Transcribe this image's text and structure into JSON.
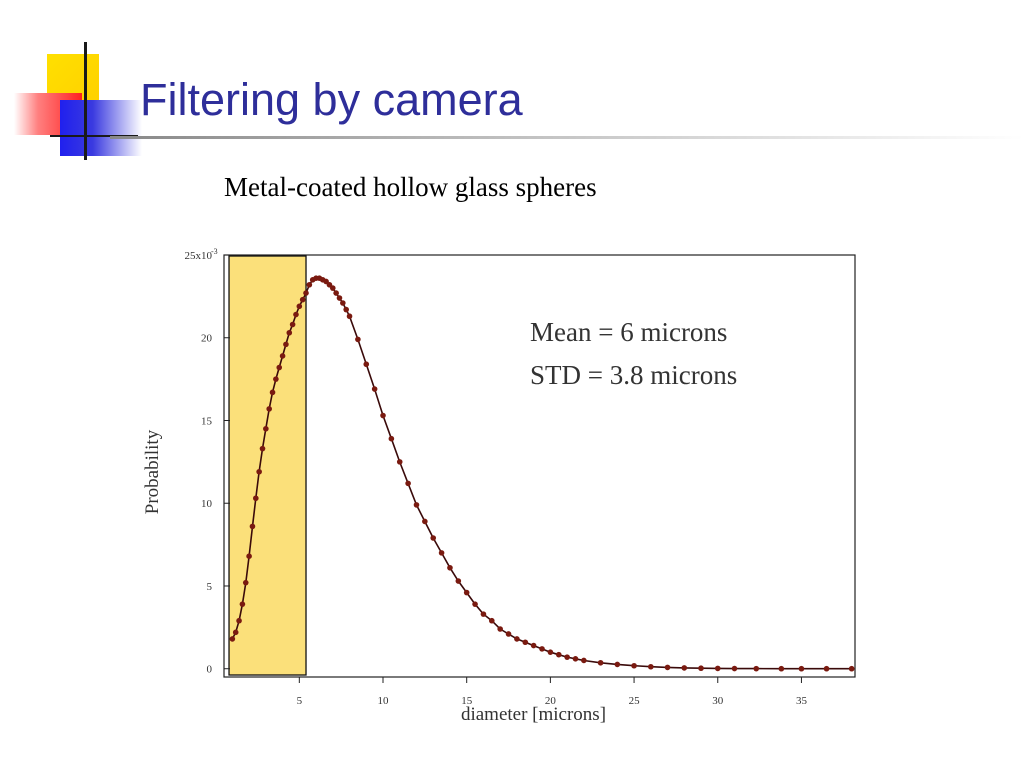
{
  "slide": {
    "title": "Filtering by camera",
    "subtitle": "Metal-coated hollow glass spheres"
  },
  "colors": {
    "title": "#2e2e9a",
    "highlight": "#fbe07a",
    "curve": "#3a0a0a",
    "marker": "#7a1a10"
  },
  "chart_data": {
    "type": "line",
    "title": "",
    "xlabel": "diameter [microns]",
    "ylabel": "Probability",
    "x_ticks": [
      5,
      10,
      15,
      20,
      25,
      30,
      35
    ],
    "y_ticks": [
      0,
      5,
      10,
      15,
      20,
      25
    ],
    "y_tick_labels": [
      "0",
      "5",
      "10",
      "15",
      "20",
      "25x10"
    ],
    "y_exponent": "-3",
    "xlim": [
      0.5,
      38.2
    ],
    "ylim": [
      -0.5,
      25
    ],
    "grid": false,
    "highlight_region": [
      0.8,
      5.4
    ],
    "annotations": [
      "Mean = 6 microns",
      "STD = 3.8 microns"
    ],
    "series": [
      {
        "x": [
          1.0,
          1.2,
          1.4,
          1.6,
          1.8,
          2.0,
          2.2,
          2.4,
          2.6,
          2.8,
          3.0,
          3.2,
          3.4,
          3.6,
          3.8,
          4.0,
          4.2,
          4.4,
          4.6,
          4.8,
          5.0,
          5.2,
          5.4,
          5.6,
          5.8,
          6.0,
          6.2,
          6.4,
          6.6,
          6.8,
          7.0,
          7.2,
          7.4,
          7.6,
          7.8,
          8.0,
          8.5,
          9.0,
          9.5,
          10.0,
          10.5,
          11.0,
          11.5,
          12.0,
          12.5,
          13.0,
          13.5,
          14.0,
          14.5,
          15.0,
          15.5,
          16.0,
          16.5,
          17.0,
          17.5,
          18.0,
          18.5,
          19.0,
          19.5,
          20.0,
          20.5,
          21.0,
          21.5,
          22.0,
          23.0,
          24.0,
          25.0,
          26.0,
          27.0,
          28.0,
          29.0,
          30.0,
          31.0,
          32.3,
          33.8,
          35.0,
          36.5,
          38.0
        ],
        "y": [
          1.8,
          2.2,
          2.9,
          3.9,
          5.2,
          6.8,
          8.6,
          10.3,
          11.9,
          13.3,
          14.5,
          15.7,
          16.7,
          17.5,
          18.2,
          18.9,
          19.6,
          20.3,
          20.8,
          21.4,
          21.9,
          22.3,
          22.7,
          23.2,
          23.5,
          23.6,
          23.6,
          23.5,
          23.4,
          23.2,
          23.0,
          22.7,
          22.4,
          22.1,
          21.7,
          21.3,
          19.9,
          18.4,
          16.9,
          15.3,
          13.9,
          12.5,
          11.2,
          9.9,
          8.9,
          7.9,
          7.0,
          6.1,
          5.3,
          4.6,
          3.9,
          3.3,
          2.9,
          2.4,
          2.1,
          1.8,
          1.6,
          1.4,
          1.2,
          1.0,
          0.85,
          0.7,
          0.6,
          0.5,
          0.36,
          0.26,
          0.18,
          0.12,
          0.08,
          0.05,
          0.03,
          0.02,
          0.01,
          0.005,
          0.0,
          0.0,
          0.0,
          0.0
        ]
      }
    ]
  }
}
